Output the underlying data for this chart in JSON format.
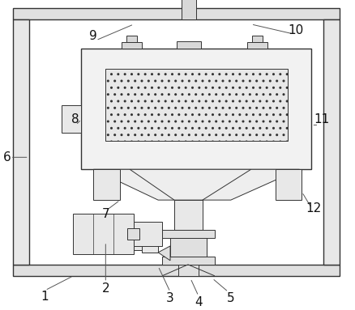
{
  "fig_width": 4.38,
  "fig_height": 3.83,
  "dpi": 100,
  "bg_color": "#ffffff",
  "lc": "#333333",
  "lw": 1.0,
  "tlw": 0.7
}
